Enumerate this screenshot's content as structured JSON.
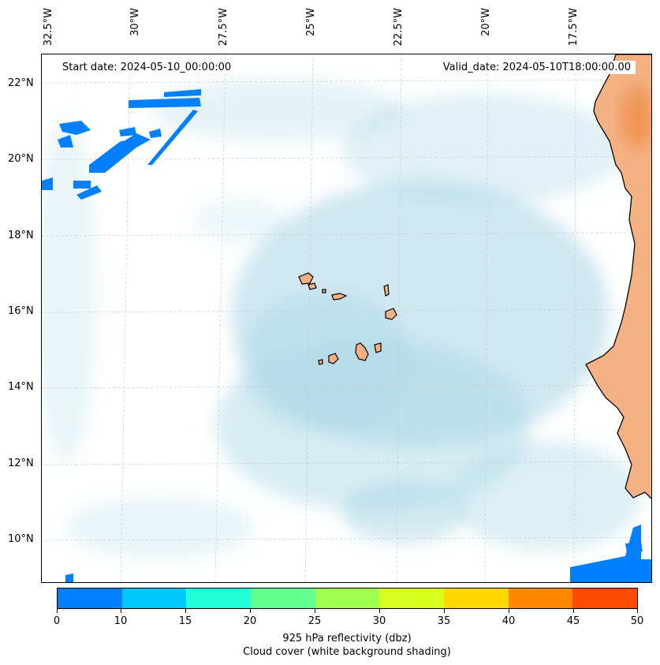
{
  "map": {
    "header": {
      "start_date": "Start date: 2024-05-10_00:00:00",
      "valid_date": "Valid_date: 2024-05-10T18:00:00.00"
    },
    "lon_labels": [
      "32.5°W",
      "30°W",
      "27.5°W",
      "25°W",
      "22.5°W",
      "20°W",
      "17.5°W"
    ],
    "lat_labels": [
      "22°N",
      "20°N",
      "18°N",
      "16°N",
      "14°N",
      "12°N",
      "10°N"
    ],
    "land_color": "#f4b183",
    "coastline_color": "#000000",
    "cloud_color": "#a9d6e5"
  },
  "colorbar": {
    "ticks": [
      "0",
      "10",
      "15",
      "20",
      "25",
      "30",
      "35",
      "40",
      "45",
      "50"
    ],
    "colors": [
      "#0080ff",
      "#00c8ff",
      "#20ffd8",
      "#60ff90",
      "#a0ff50",
      "#d8ff20",
      "#ffd800",
      "#ff8800",
      "#ff4a00"
    ],
    "label_line1": "925 hPa reflectivity (dbz)",
    "label_line2": "Cloud cover (white background shading)"
  }
}
